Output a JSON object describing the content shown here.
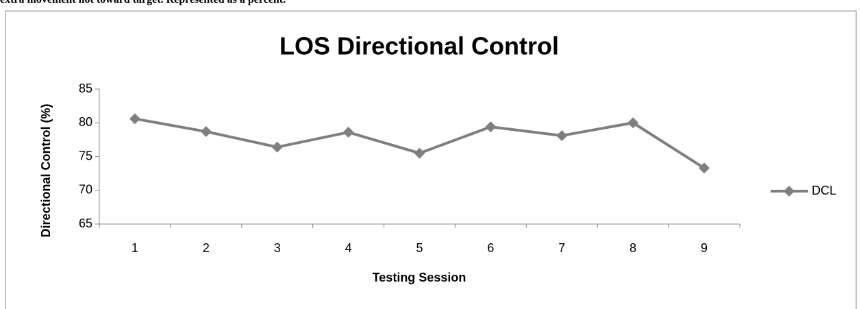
{
  "caption": "extra movement not toward target.  Represented as a percent.",
  "chart_data": {
    "type": "line",
    "title": "LOS Directional Control",
    "x_label": "Testing Session",
    "y_label": "Directional Control (%)",
    "categories": [
      "1",
      "2",
      "3",
      "4",
      "5",
      "6",
      "7",
      "8",
      "9"
    ],
    "series": [
      {
        "name": "DCL",
        "color": "#7f7f7f",
        "values": [
          80.6,
          78.7,
          76.4,
          78.6,
          75.5,
          79.4,
          78.1,
          80.0,
          73.3
        ]
      }
    ],
    "ylim": [
      65,
      85
    ],
    "yticks": [
      65,
      70,
      75,
      80,
      85
    ],
    "grid": false,
    "legend": "right"
  }
}
